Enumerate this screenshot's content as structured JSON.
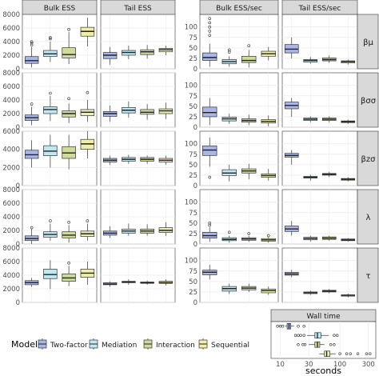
{
  "colors": {
    "Two-factor": "#aab6e6",
    "Mediation": "#bfe8f2",
    "Interaction": "#cddc9c",
    "Sequential": "#f0efa9",
    "strip_bg": "#d9d9d9",
    "panel_bg": "#ffffff",
    "grid": "#ebebeb"
  },
  "chart_data": [
    {
      "type": "box",
      "panel_group": "ess",
      "columns": [
        "Bulk ESS",
        "Tail ESS"
      ],
      "rows": [
        "βμ",
        "βσσ",
        "βzσ",
        "λ",
        "τ"
      ],
      "series_order": [
        "Two-factor",
        "Mediation",
        "Interaction",
        "Sequential"
      ],
      "row_ylim": [
        [
          0,
          8000
        ],
        [
          0,
          8000
        ],
        [
          0,
          6000
        ],
        [
          0,
          8000
        ],
        [
          0,
          8000
        ]
      ],
      "row_yticks": [
        [
          "0",
          "2000",
          "4000",
          "6000",
          "8000"
        ],
        [
          "0",
          "2000",
          "4000",
          "6000",
          "8000"
        ],
        [
          "0",
          "2000",
          "4000",
          "6000"
        ],
        [
          "0",
          "2000",
          "4000",
          "6000",
          "8000"
        ],
        [
          "0",
          "2000",
          "4000",
          "6000",
          "8000"
        ]
      ],
      "row_yticks_num": [
        [
          0,
          2000,
          4000,
          6000,
          8000
        ],
        [
          0,
          2000,
          4000,
          6000,
          8000
        ],
        [
          0,
          2000,
          4000,
          6000
        ],
        [
          0,
          2000,
          4000,
          6000,
          8000
        ],
        [
          0,
          2000,
          4000,
          6000,
          8000
        ]
      ],
      "boxes": [
        [
          [
            [
              200,
              800,
              1200,
              1800,
              3200
            ],
            [
              1000,
              1800,
              2200,
              2700,
              4000
            ],
            [
              700,
              1600,
              2100,
              3100,
              5400
            ],
            [
              3300,
              4800,
              5500,
              6100,
              7500
            ]
          ],
          [
            [
              600,
              1500,
              2000,
              2400,
              3200
            ],
            [
              1400,
              2000,
              2400,
              2700,
              3400
            ],
            [
              1500,
              2100,
              2500,
              2800,
              3500
            ],
            [
              2000,
              2500,
              2800,
              3000,
              3400
            ]
          ]
        ],
        [
          [
            [
              300,
              1000,
              1400,
              1800,
              3000
            ],
            [
              900,
              2000,
              2600,
              3000,
              4600
            ],
            [
              600,
              1500,
              2000,
              2400,
              3500
            ],
            [
              800,
              1700,
              2200,
              2600,
              4000
            ]
          ],
          [
            [
              800,
              1600,
              2000,
              2300,
              3200
            ],
            [
              1400,
              2100,
              2500,
              2900,
              3800
            ],
            [
              1100,
              1900,
              2200,
              2600,
              3400
            ],
            [
              1200,
              2000,
              2400,
              2700,
              3600
            ]
          ]
        ],
        [
          [
            [
              2000,
              3000,
              3400,
              3900,
              5000
            ],
            [
              2000,
              3300,
              3800,
              4400,
              5600
            ],
            [
              1800,
              3000,
              3600,
              4300,
              5600
            ],
            [
              3000,
              4000,
              4600,
              5100,
              6000
            ]
          ],
          [
            [
              2300,
              2600,
              2800,
              3000,
              3300
            ],
            [
              2400,
              2700,
              2900,
              3100,
              3400
            ],
            [
              2400,
              2700,
              2900,
              3100,
              3300
            ],
            [
              2300,
              2600,
              2800,
              3000,
              3300
            ]
          ]
        ],
        [
          [
            [
              0,
              500,
              800,
              1200,
              2200
            ],
            [
              500,
              1000,
              1400,
              1800,
              3000
            ],
            [
              200,
              900,
              1300,
              1800,
              2800
            ],
            [
              500,
              1100,
              1500,
              1900,
              3000
            ]
          ],
          [
            [
              900,
              1300,
              1600,
              1900,
              2600
            ],
            [
              1200,
              1600,
              1900,
              2200,
              3000
            ],
            [
              1200,
              1600,
              1900,
              2200,
              2900
            ],
            [
              1200,
              1700,
              2000,
              2400,
              3200
            ]
          ]
        ],
        [
          [
            [
              2300,
              2600,
              2900,
              3200,
              3600
            ],
            [
              2000,
              3500,
              4100,
              4900,
              6200
            ],
            [
              2400,
              3100,
              3600,
              4200,
              5400
            ],
            [
              2600,
              3700,
              4300,
              4900,
              6000
            ]
          ],
          [
            [
              2300,
              2600,
              2700,
              2900,
              3100
            ],
            [
              2600,
              2900,
              3000,
              3100,
              3400
            ],
            [
              2600,
              2800,
              2900,
              3000,
              3200
            ],
            [
              2500,
              2800,
              2900,
              3100,
              3400
            ]
          ]
        ]
      ],
      "outliers": [
        [
          [
            [
              3500,
              3800,
              4000
            ],
            [
              4400,
              4600
            ],
            [
              5800
            ],
            []
          ],
          [
            [],
            [],
            [],
            []
          ]
        ],
        [
          [
            [
              3400
            ],
            [
              5000
            ],
            [
              4200
            ],
            [
              5100
            ]
          ],
          [
            [],
            [],
            [],
            []
          ]
        ],
        [
          [
            [],
            [],
            [],
            []
          ],
          [
            [],
            [],
            [],
            []
          ]
        ],
        [
          [
            [
              2400
            ],
            [
              3400
            ],
            [
              3200
            ],
            [
              3400
            ]
          ],
          [
            [],
            [],
            [],
            []
          ]
        ],
        [
          [
            [],
            [],
            [
              5800
            ],
            []
          ],
          [
            [],
            [],
            [],
            []
          ]
        ]
      ]
    },
    {
      "type": "box",
      "panel_group": "ess_per_sec",
      "columns": [
        "Bulk ESS/sec",
        "Tail ESS/sec"
      ],
      "rows": [
        "βμ",
        "βσσ",
        "βzσ",
        "λ",
        "τ"
      ],
      "row_strips": [
        "βμ",
        "βσσ",
        "βzσ",
        "λ",
        "τ"
      ],
      "series_order": [
        "Two-factor",
        "Mediation",
        "Interaction",
        "Sequential"
      ],
      "row_ylim": [
        [
          0,
          130
        ],
        [
          0,
          130
        ],
        [
          0,
          130
        ],
        [
          0,
          130
        ],
        [
          0,
          130
        ]
      ],
      "row_yticks": [
        [
          "0",
          "25",
          "50",
          "75",
          "100"
        ],
        [
          "0",
          "25",
          "50",
          "75",
          "100"
        ],
        [
          "0",
          "25",
          "50",
          "75",
          "100"
        ],
        [
          "0",
          "25",
          "50",
          "75",
          "100"
        ],
        [
          "0",
          "25",
          "50",
          "75",
          "100"
        ]
      ],
      "row_yticks_num": [
        [
          0,
          25,
          50,
          75,
          100
        ],
        [
          0,
          25,
          50,
          75,
          100
        ],
        [
          0,
          25,
          50,
          75,
          100
        ],
        [
          0,
          25,
          50,
          75,
          100
        ],
        [
          0,
          25,
          50,
          75,
          100
        ]
      ],
      "boxes": [
        [
          [
            [
              5,
              20,
              27,
              38,
              60
            ],
            [
              5,
              12,
              17,
              22,
              30
            ],
            [
              3,
              15,
              20,
              30,
              45
            ],
            [
              20,
              30,
              36,
              42,
              52
            ]
          ],
          [
            [
              25,
              38,
              47,
              58,
              75
            ],
            [
              12,
              16,
              20,
              22,
              28
            ],
            [
              14,
              19,
              22,
              26,
              32
            ],
            [
              10,
              14,
              17,
              19,
              22
            ]
          ]
        ],
        [
          [
            [
              5,
              25,
              35,
              48,
              70
            ],
            [
              8,
              15,
              20,
              24,
              32
            ],
            [
              5,
              12,
              16,
              20,
              30
            ],
            [
              2,
              10,
              14,
              18,
              28
            ]
          ],
          [
            [
              25,
              44,
              52,
              60,
              70
            ],
            [
              12,
              16,
              19,
              22,
              26
            ],
            [
              12,
              16,
              19,
              22,
              26
            ],
            [
              8,
              11,
              13,
              15,
              18
            ]
          ]
        ],
        [
          [
            [
              45,
              72,
              85,
              95,
              115
            ],
            [
              10,
              24,
              30,
              38,
              50
            ],
            [
              15,
              30,
              35,
              40,
              52
            ],
            [
              12,
              20,
              24,
              28,
              40
            ]
          ],
          [
            [
              50,
              68,
              72,
              77,
              85
            ],
            [
              12,
              18,
              20,
              22,
              26
            ],
            [
              20,
              25,
              27,
              29,
              33
            ],
            [
              10,
              13,
              15,
              17,
              20
            ]
          ]
        ],
        [
          [
            [
              5,
              14,
              20,
              28,
              40
            ],
            [
              3,
              8,
              11,
              15,
              20
            ],
            [
              5,
              9,
              12,
              15,
              19
            ],
            [
              3,
              7,
              10,
              13,
              16
            ]
          ],
          [
            [
              20,
              30,
              36,
              43,
              55
            ],
            [
              6,
              10,
              13,
              16,
              20
            ],
            [
              8,
              11,
              14,
              17,
              20
            ],
            [
              6,
              8,
              10,
              12,
              14
            ]
          ]
        ],
        [
          [
            [
              55,
              66,
              72,
              77,
              90
            ],
            [
              20,
              27,
              33,
              38,
              45
            ],
            [
              25,
              30,
              34,
              38,
              45
            ],
            [
              18,
              23,
              28,
              32,
              38
            ]
          ],
          [
            [
              60,
              65,
              68,
              72,
              78
            ],
            [
              18,
              21,
              23,
              25,
              28
            ],
            [
              22,
              25,
              27,
              29,
              32
            ],
            [
              12,
              15,
              17,
              18,
              21
            ]
          ]
        ]
      ],
      "outliers": [
        [
          [
            [
              80,
              90,
              100,
              110,
              120
            ],
            [
              40,
              45
            ],
            [
              55
            ],
            []
          ],
          [
            [],
            [],
            [],
            []
          ]
        ],
        [
          [
            [],
            [],
            [],
            []
          ],
          [
            [],
            [],
            [],
            []
          ]
        ],
        [
          [
            [
              20
            ],
            [],
            [],
            []
          ],
          [
            [],
            [],
            [],
            []
          ]
        ],
        [
          [
            [
              45,
              50
            ],
            [
              28
            ],
            [
              25
            ],
            [
              20
            ]
          ],
          [
            [],
            [],
            [],
            []
          ]
        ],
        [
          [
            [],
            [],
            [],
            []
          ],
          [
            [],
            [],
            [],
            []
          ]
        ]
      ]
    },
    {
      "type": "box",
      "panel_group": "wall_time",
      "title": "Wall time",
      "xlabel": "seconds",
      "xscale": "log10",
      "xlim": [
        7,
        400
      ],
      "xticks": [
        "10",
        "30",
        "100",
        "300"
      ],
      "xticks_num": [
        10,
        30,
        100,
        300
      ],
      "series_order": [
        "Two-factor",
        "Mediation",
        "Interaction",
        "Sequential"
      ],
      "boxes": [
        [
          12,
          13,
          14,
          15,
          17
        ],
        [
          28,
          38,
          42,
          48,
          65
        ],
        [
          30,
          38,
          42,
          46,
          55
        ],
        [
          45,
          55,
          60,
          68,
          85
        ]
      ],
      "outliers": [
        [
          9,
          10,
          11,
          20,
          25
        ],
        [
          18,
          20,
          22,
          25,
          80,
          90
        ],
        [
          20,
          24,
          26,
          70,
          80
        ],
        [
          100,
          130,
          150,
          200,
          280,
          320
        ]
      ]
    }
  ],
  "legend": {
    "title": "Model",
    "items": [
      "Two-factor",
      "Mediation",
      "Interaction",
      "Sequential"
    ]
  }
}
